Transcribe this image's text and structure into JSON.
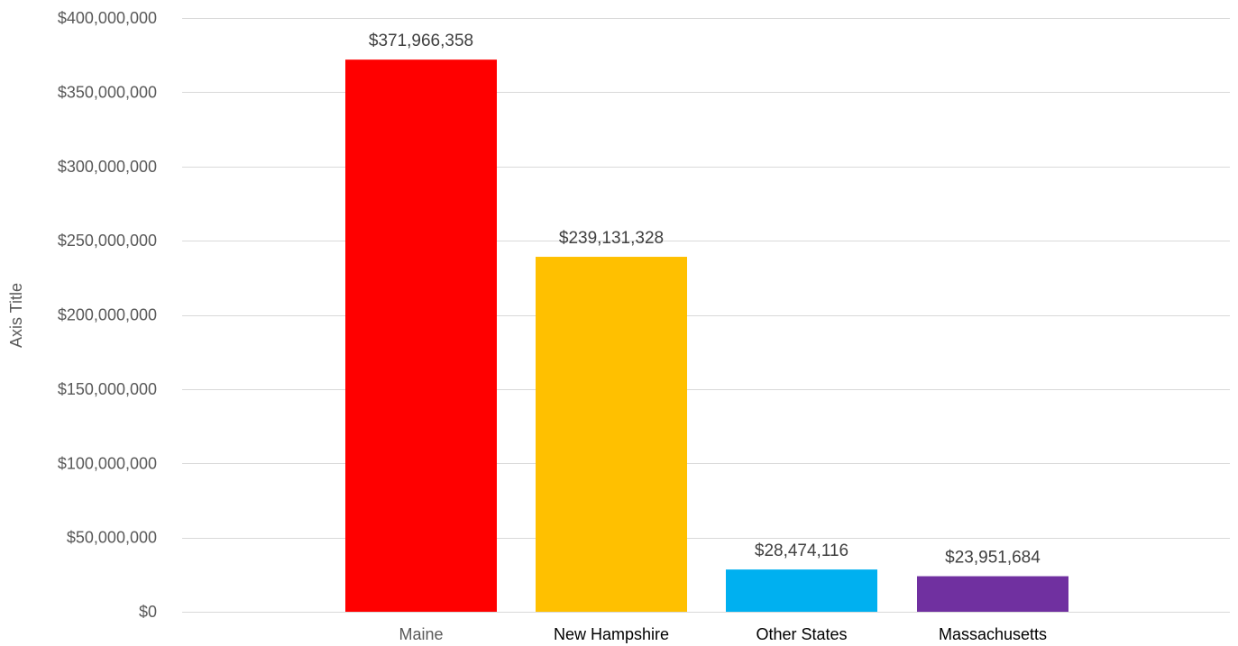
{
  "chart_data": {
    "type": "bar",
    "title": "",
    "xlabel": "",
    "ylabel": "Axis Title",
    "ylim": [
      0,
      400000000
    ],
    "grid": true,
    "y_ticks": [
      "$0",
      "$50,000,000",
      "$100,000,000",
      "$150,000,000",
      "$200,000,000",
      "$250,000,000",
      "$300,000,000",
      "$350,000,000",
      "$400,000,000"
    ],
    "y_tick_values": [
      0,
      50000000,
      100000000,
      150000000,
      200000000,
      250000000,
      300000000,
      350000000,
      400000000
    ],
    "categories": [
      "Maine",
      "New Hampshire",
      "Other States",
      "Massachusetts"
    ],
    "values": [
      371966358,
      239131328,
      28474116,
      23951684
    ],
    "data_labels": [
      "$371,966,358",
      "$239,131,328",
      "$28,474,116",
      "$23,951,684"
    ],
    "colors": [
      "#ff0000",
      "#ffc000",
      "#00b0f0",
      "#7030a0"
    ],
    "category_label_colors": [
      "#595959",
      "#000000",
      "#000000",
      "#000000"
    ]
  }
}
